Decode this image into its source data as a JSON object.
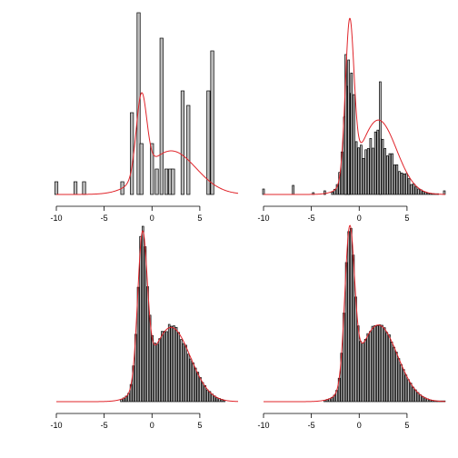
{
  "chart_data": [
    {
      "type": "bar",
      "subtype": "histogram-with-density",
      "sample": "small",
      "xlim": [
        -10,
        9
      ],
      "xticks": [
        "-10",
        "-5",
        "0",
        "5"
      ],
      "bin_width": 0.33,
      "bars": [
        {
          "x": -10.0,
          "h": 0.07
        },
        {
          "x": -8.0,
          "h": 0.07
        },
        {
          "x": -7.1,
          "h": 0.07
        },
        {
          "x": -3.1,
          "h": 0.07
        },
        {
          "x": -2.1,
          "h": 0.45
        },
        {
          "x": -1.4,
          "h": 1.0
        },
        {
          "x": -1.1,
          "h": 0.28
        },
        {
          "x": 0.0,
          "h": 0.28
        },
        {
          "x": 0.5,
          "h": 0.14
        },
        {
          "x": 1.0,
          "h": 0.86
        },
        {
          "x": 1.5,
          "h": 0.14
        },
        {
          "x": 1.9,
          "h": 0.14
        },
        {
          "x": 2.2,
          "h": 0.14
        },
        {
          "x": 3.2,
          "h": 0.57
        },
        {
          "x": 3.8,
          "h": 0.49
        },
        {
          "x": 5.9,
          "h": 0.57
        },
        {
          "x": 6.3,
          "h": 0.79
        }
      ],
      "density_color": "#e0242a",
      "density": {
        "components": [
          {
            "w": 0.28,
            "mu": -1.1,
            "sd": 0.55
          },
          {
            "w": 0.72,
            "mu": 2.0,
            "sd": 2.6
          }
        ],
        "peak": 0.56
      }
    },
    {
      "type": "bar",
      "subtype": "histogram-with-density",
      "sample": "medium",
      "xlim": [
        -10,
        9
      ],
      "xticks": [
        "-10",
        "-5",
        "0",
        "5"
      ],
      "bin_width": 0.19,
      "bars_mix": {
        "components": [
          {
            "w": 0.33,
            "mu": -1.0,
            "sd": 0.5
          },
          {
            "w": 0.67,
            "mu": 2.0,
            "sd": 2.0
          }
        ],
        "range": [
          -2.8,
          8.4
        ],
        "step": 0.25,
        "peak": 0.67,
        "noise": 0.22,
        "extra": [
          {
            "x": -10.0,
            "h": 0.03
          },
          {
            "x": -6.9,
            "h": 0.05
          },
          {
            "x": -4.8,
            "h": 0.01
          },
          {
            "x": -3.6,
            "h": 0.02
          },
          {
            "x": -1.4,
            "h": 0.77
          },
          {
            "x": -1.1,
            "h": 0.74
          },
          {
            "x": 2.2,
            "h": 0.62
          },
          {
            "x": 8.9,
            "h": 0.02
          }
        ]
      },
      "density_color": "#e0242a",
      "density": {
        "components": [
          {
            "w": 0.33,
            "mu": -1.0,
            "sd": 0.45
          },
          {
            "w": 0.67,
            "mu": 2.0,
            "sd": 1.9
          }
        ],
        "peak": 0.97
      }
    },
    {
      "type": "bar",
      "subtype": "histogram-with-density",
      "sample": "large",
      "xlim": [
        -10,
        9
      ],
      "xticks": [
        "-10",
        "-5",
        "0",
        "5"
      ],
      "bin_width": 0.18,
      "bars_mix": {
        "components": [
          {
            "w": 0.33,
            "mu": -1.0,
            "sd": 0.5
          },
          {
            "w": 0.67,
            "mu": 2.0,
            "sd": 2.0
          }
        ],
        "range": [
          -3.2,
          7.6
        ],
        "step": 0.25,
        "peak": 0.95,
        "noise": 0.06,
        "extra": []
      },
      "density_color": "#e0242a",
      "density": {
        "components": [
          {
            "w": 0.33,
            "mu": -1.0,
            "sd": 0.5
          },
          {
            "w": 0.67,
            "mu": 2.0,
            "sd": 2.0
          }
        ],
        "peak": 0.94
      }
    },
    {
      "type": "bar",
      "subtype": "histogram-with-density",
      "sample": "very large",
      "xlim": [
        -10,
        9
      ],
      "xticks": [
        "-10",
        "-5",
        "0",
        "5"
      ],
      "bin_width": 0.18,
      "bars_mix": {
        "components": [
          {
            "w": 0.33,
            "mu": -1.0,
            "sd": 0.5
          },
          {
            "w": 0.67,
            "mu": 2.0,
            "sd": 2.0
          }
        ],
        "range": [
          -3.6,
          9.0
        ],
        "step": 0.25,
        "peak": 0.98,
        "noise": 0.02,
        "extra": []
      },
      "density_color": "#e0242a",
      "density": {
        "components": [
          {
            "w": 0.33,
            "mu": -1.0,
            "sd": 0.5
          },
          {
            "w": 0.67,
            "mu": 2.0,
            "sd": 2.0
          }
        ],
        "peak": 0.97
      }
    }
  ]
}
